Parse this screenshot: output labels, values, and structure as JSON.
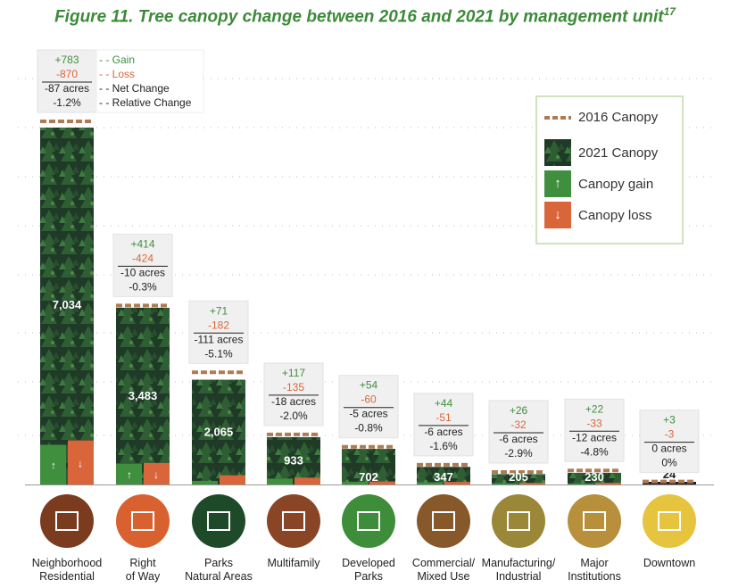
{
  "title": "Figure 11. Tree canopy change between 2016 and 2021 by management unit",
  "title_footnote": "17",
  "colors": {
    "gain": "#3f8f3f",
    "loss": "#d9663a",
    "canopy_2016": "#b07a52",
    "title": "#3d8a3a"
  },
  "annotation_key": {
    "gain": "Gain",
    "loss": "Loss",
    "net": "Net Change",
    "relative": "Relative Change"
  },
  "legend": [
    {
      "label": "2016 Canopy",
      "icon": "dashed-line"
    },
    {
      "label": "2021 Canopy",
      "icon": "forest-swatch"
    },
    {
      "label": "Canopy gain",
      "icon": "arrow-up-icon"
    },
    {
      "label": "Canopy loss",
      "icon": "arrow-down-icon"
    }
  ],
  "chart_data": {
    "type": "bar",
    "ylabel": "",
    "xlabel": "",
    "ylim": [
      0,
      7034
    ],
    "grid": "dotted horizontal",
    "categories": [
      "Neighborhood Residential",
      "Right of Way",
      "Parks Natural Areas",
      "Multifamily",
      "Developed Parks",
      "Commercial/ Mixed Use",
      "Manufacturing/ Industrial",
      "Major Institutions",
      "Downtown"
    ],
    "canopy_2021": [
      "7,034",
      "3,483",
      "2,065",
      "933",
      "702",
      "347",
      "205",
      "230",
      "24"
    ],
    "canopy_2021_values": [
      7034,
      3483,
      2065,
      933,
      702,
      347,
      205,
      230,
      24
    ],
    "gain": [
      "+783",
      "+414",
      "+71",
      "+117",
      "+54",
      "+44",
      "+26",
      "+22",
      "+3"
    ],
    "gain_values": [
      783,
      414,
      71,
      117,
      54,
      44,
      26,
      22,
      3
    ],
    "loss": [
      "-870",
      "-424",
      "-182",
      "-135",
      "-60",
      "-51",
      "-32",
      "-33",
      "-3"
    ],
    "loss_values": [
      870,
      424,
      182,
      135,
      60,
      51,
      32,
      33,
      3
    ],
    "net_change": [
      "-87 acres",
      "-10 acres",
      "-111 acres",
      "-18 acres",
      "-5 acres",
      "-6 acres",
      "-6 acres",
      "-12 acres",
      "0 acres"
    ],
    "relative_change": [
      "-1.2%",
      "-0.3%",
      "-5.1%",
      "-2.0%",
      "-0.8%",
      "-1.6%",
      "-2.9%",
      "-4.8%",
      "0%"
    ]
  },
  "units": [
    {
      "line1": "Neighborhood",
      "line2": "Residential",
      "icon": "house-icon",
      "color": "#7a3b1e"
    },
    {
      "line1": "Right",
      "line2": "of Way",
      "icon": "road-sign-icon",
      "color": "#d9602f"
    },
    {
      "line1": "Parks",
      "line2": "Natural Areas",
      "icon": "hiker-tree-icon",
      "color": "#1e4a2a"
    },
    {
      "line1": "Multifamily",
      "line2": "",
      "icon": "apartment-icon",
      "color": "#8a4526"
    },
    {
      "line1": "Developed",
      "line2": "Parks",
      "icon": "playground-icon",
      "color": "#3d8d3a"
    },
    {
      "line1": "Commercial/",
      "line2": "Mixed Use",
      "icon": "storefront-icon",
      "color": "#86582a"
    },
    {
      "line1": "Manufacturing/",
      "line2": "Industrial",
      "icon": "factory-icon",
      "color": "#9a8738"
    },
    {
      "line1": "Major",
      "line2": "Institutions",
      "icon": "columns-building-icon",
      "color": "#b88f3a"
    },
    {
      "line1": "",
      "line2": "Downtown",
      "icon": "skyline-icon",
      "color": "#e6c43e"
    }
  ]
}
